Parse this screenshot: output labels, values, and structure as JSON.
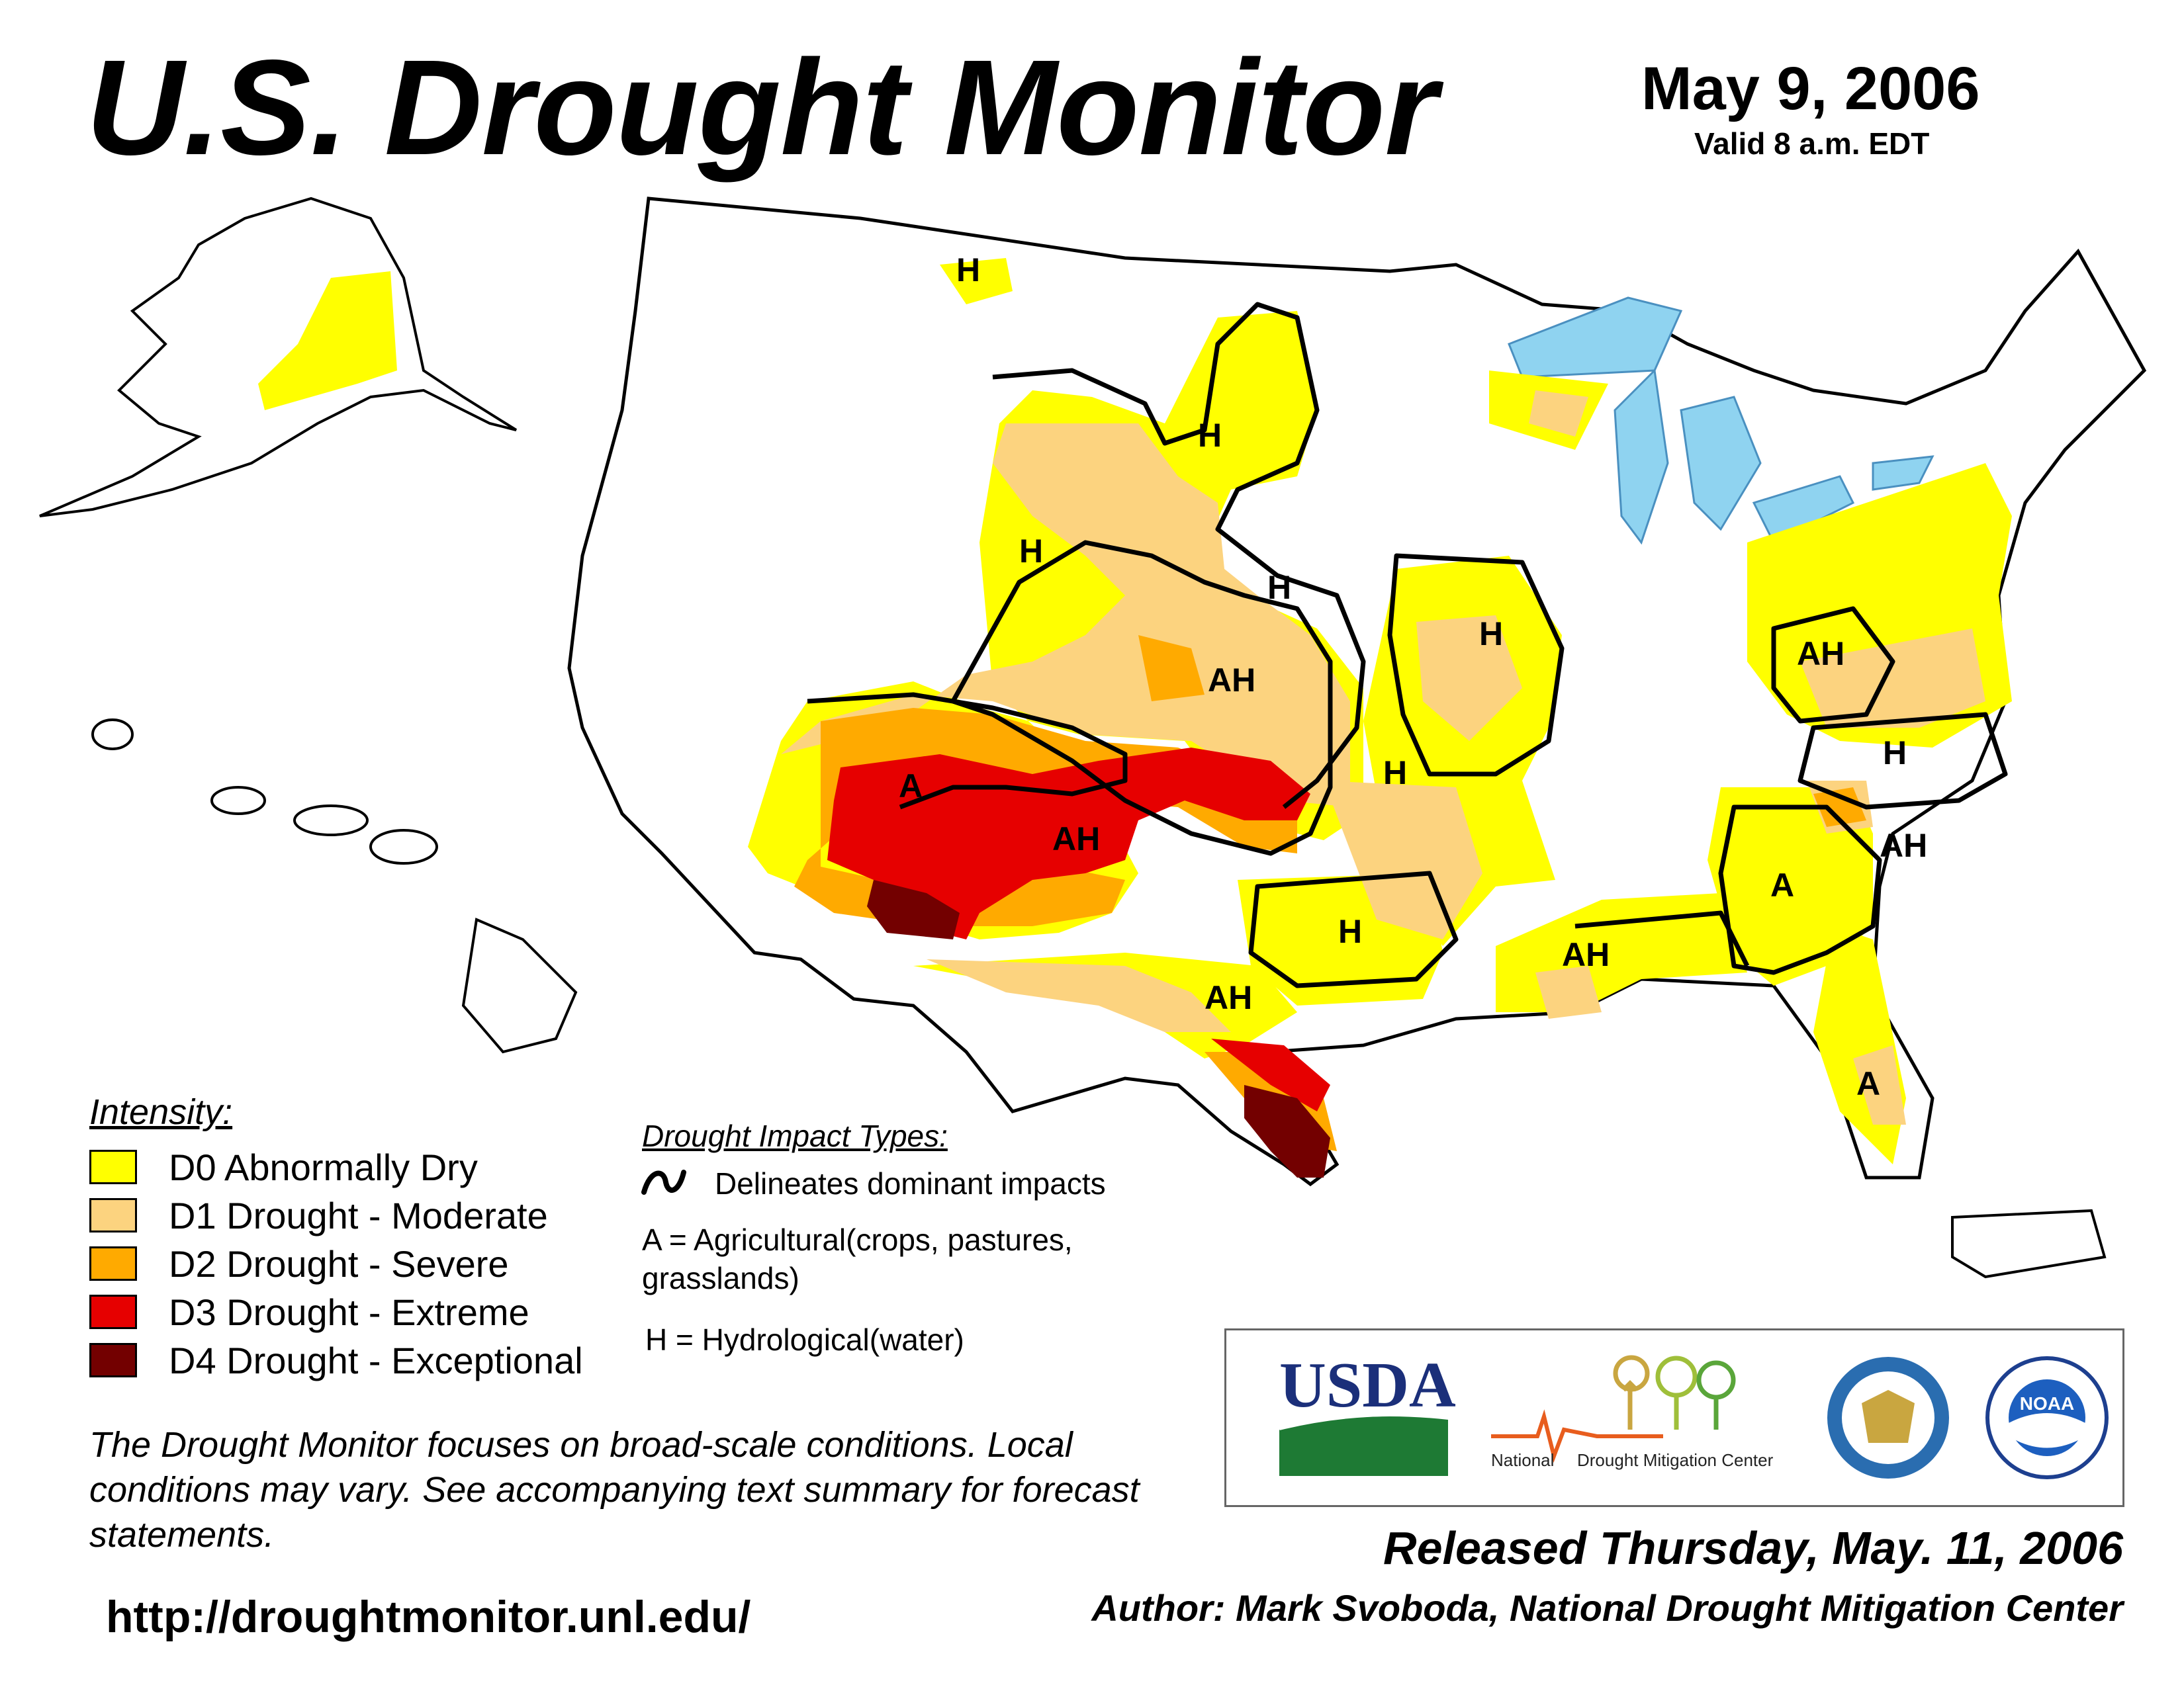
{
  "header": {
    "title": "U.S. Drought Monitor",
    "date": "May 9, 2006",
    "valid": "Valid 8 a.m. EDT"
  },
  "map": {
    "impact_labels": [
      {
        "id": "mt-h",
        "text": "H"
      },
      {
        "id": "nd-h",
        "text": "H"
      },
      {
        "id": "wy-h",
        "text": "H"
      },
      {
        "id": "ne-h",
        "text": "H"
      },
      {
        "id": "ks-ah",
        "text": "AH"
      },
      {
        "id": "az-a",
        "text": "A"
      },
      {
        "id": "nm-ah",
        "text": "AH"
      },
      {
        "id": "ia-h",
        "text": "H"
      },
      {
        "id": "mo-h",
        "text": "H"
      },
      {
        "id": "tx-h",
        "text": "H"
      },
      {
        "id": "tx-ah",
        "text": "AH"
      },
      {
        "id": "la-ah",
        "text": "AH"
      },
      {
        "id": "wv-ah",
        "text": "AH"
      },
      {
        "id": "va-h",
        "text": "H"
      },
      {
        "id": "sc-ah",
        "text": "AH"
      },
      {
        "id": "ga-a",
        "text": "A"
      },
      {
        "id": "fl-a",
        "text": "A"
      }
    ]
  },
  "legend": {
    "heading": "Intensity:",
    "items": [
      {
        "label": "D0 Abnormally Dry",
        "color": "#ffff00"
      },
      {
        "label": "D1 Drought - Moderate",
        "color": "#fcd37f"
      },
      {
        "label": "D2 Drought - Severe",
        "color": "#ffaa00"
      },
      {
        "label": "D3 Drought - Extreme",
        "color": "#e60000"
      },
      {
        "label": "D4 Drought - Exceptional",
        "color": "#730000"
      }
    ]
  },
  "impacts": {
    "heading": "Drought Impact Types:",
    "line_label": "Delineates dominant impacts",
    "a_label": "A = Agricultural(crops, pastures, grasslands)",
    "h_label": "H = Hydrological(water)"
  },
  "note": "The Drought Monitor focuses on broad-scale conditions. Local conditions may vary. See accompanying text summary for forecast statements.",
  "url": "http://droughtmonitor.unl.edu/",
  "logos": {
    "usda": "USDA",
    "ndmc_part1": "National",
    "ndmc_part2": "Drought Mitigation Center",
    "noaa": "NOAA"
  },
  "footer": {
    "released": "Released Thursday, May. 11, 2006",
    "author": "Author: Mark Svoboda, National Drought Mitigation Center"
  }
}
